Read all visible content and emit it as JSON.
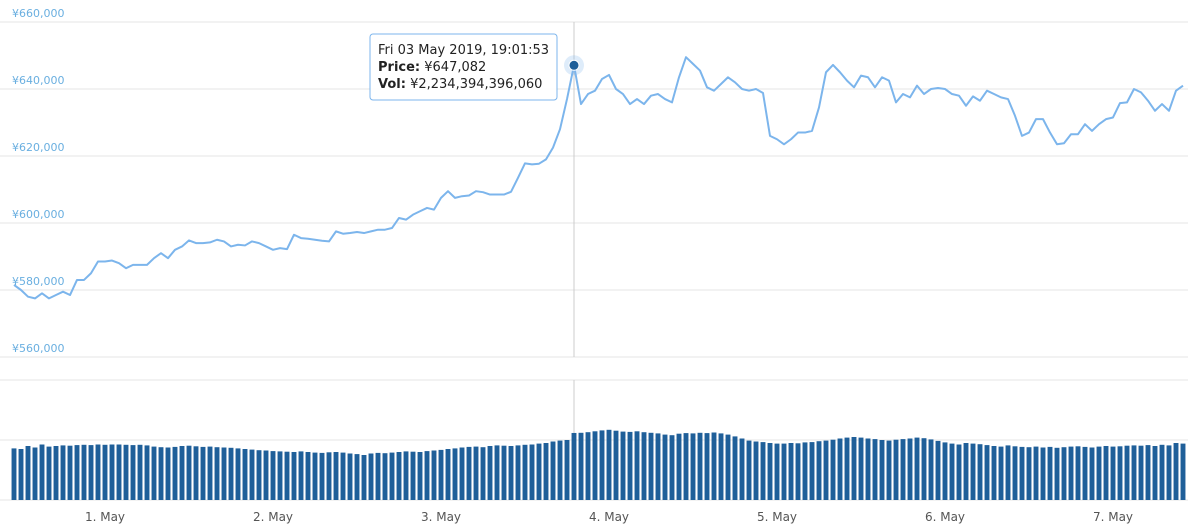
{
  "chart_data": {
    "type": "line",
    "categories": [
      null,
      null,
      null,
      null,
      null,
      null,
      null,
      null,
      null,
      null,
      null,
      null,
      null,
      "1. May",
      null,
      null,
      null,
      null,
      null,
      null,
      null,
      null,
      null,
      null,
      null,
      null,
      null,
      null,
      null,
      null,
      null,
      null,
      null,
      null,
      null,
      null,
      null,
      "2. May",
      null,
      null,
      null,
      null,
      null,
      null,
      null,
      null,
      null,
      null,
      null,
      null,
      null,
      null,
      null,
      null,
      null,
      null,
      null,
      null,
      null,
      null,
      null,
      "3. May",
      null,
      null,
      null,
      null,
      null,
      null,
      null,
      null,
      null,
      null,
      null,
      null,
      null,
      null,
      null,
      null,
      null,
      null,
      null,
      null,
      null,
      null,
      null,
      "4. May",
      null,
      null,
      null,
      null,
      null,
      null,
      null,
      null,
      null,
      null,
      null,
      null,
      null,
      null,
      null,
      null,
      null,
      null,
      null,
      null,
      null,
      null,
      null,
      "5. May",
      null,
      null,
      null,
      null,
      null,
      null,
      null,
      null,
      null,
      null,
      null,
      null,
      null,
      null,
      null,
      null,
      null,
      null,
      null,
      null,
      null,
      null,
      null,
      "6. May",
      null,
      null,
      null,
      null,
      null,
      null,
      null,
      null,
      null,
      null,
      null,
      null,
      null,
      null,
      null,
      null,
      null,
      null,
      null,
      null,
      null,
      null,
      null,
      "7. May",
      null,
      null,
      null,
      null,
      null,
      null,
      null,
      null,
      null,
      null
    ],
    "series": [
      {
        "type": "line",
        "color": "#7cb5ec",
        "values": [
          581500,
          580000,
          578000,
          577500,
          579000,
          577500,
          578500,
          579500,
          578500,
          583000,
          583000,
          585000,
          588500,
          588500,
          588800,
          588000,
          586500,
          587500,
          587500,
          587500,
          589500,
          591000,
          589500,
          592000,
          593000,
          594800,
          594000,
          594000,
          594200,
          595000,
          594500,
          593000,
          593500,
          593300,
          594500,
          594000,
          593000,
          592000,
          592500,
          592200,
          596500,
          595500,
          595300,
          595000,
          594700,
          594500,
          597500,
          596800,
          597000,
          597300,
          597000,
          597500,
          598000,
          598000,
          598500,
          601500,
          601000,
          602500,
          603500,
          604500,
          604000,
          607500,
          609500,
          607500,
          608000,
          608200,
          609500,
          609200,
          608500,
          608500,
          608500,
          609300,
          613500,
          617800,
          617500,
          617700,
          619000,
          622500,
          628000,
          637000,
          647082,
          635500,
          638500,
          639500,
          643000,
          644200,
          640000,
          638500,
          635500,
          637000,
          635500,
          638000,
          638500,
          637000,
          636000,
          643500,
          649500,
          647500,
          645500,
          640500,
          639500,
          641500,
          643500,
          642000,
          640000,
          639500,
          640000,
          638800,
          626000,
          625000,
          623500,
          625000,
          627000,
          627000,
          627500,
          634500,
          645000,
          647200,
          645000,
          642500,
          640500,
          644000,
          643500,
          640500,
          643500,
          642500,
          636000,
          638500,
          637500,
          641000,
          638500,
          640000,
          640300,
          640000,
          638500,
          638000,
          635000,
          637800,
          636500,
          639500,
          638500,
          637500,
          637000,
          632000,
          626000,
          627000,
          631000,
          631000,
          627000,
          623500,
          623800,
          626500,
          626500,
          629500,
          627500,
          629500,
          631000,
          631500,
          635800,
          636000,
          640000,
          639000,
          636500,
          633500,
          635500,
          633500,
          639500,
          641000
        ]
      },
      {
        "type": "column",
        "axis": "y2",
        "color": "#1f5f99",
        "values": [
          1720000000000,
          1700000000000,
          1800000000000,
          1750000000000,
          1850000000000,
          1780000000000,
          1800000000000,
          1820000000000,
          1810000000000,
          1830000000000,
          1840000000000,
          1830000000000,
          1850000000000,
          1840000000000,
          1850000000000,
          1850000000000,
          1840000000000,
          1830000000000,
          1840000000000,
          1820000000000,
          1780000000000,
          1760000000000,
          1750000000000,
          1770000000000,
          1800000000000,
          1810000000000,
          1790000000000,
          1770000000000,
          1780000000000,
          1760000000000,
          1750000000000,
          1740000000000,
          1720000000000,
          1700000000000,
          1680000000000,
          1660000000000,
          1650000000000,
          1630000000000,
          1620000000000,
          1610000000000,
          1600000000000,
          1620000000000,
          1600000000000,
          1580000000000,
          1570000000000,
          1590000000000,
          1600000000000,
          1580000000000,
          1550000000000,
          1530000000000,
          1500000000000,
          1550000000000,
          1570000000000,
          1560000000000,
          1580000000000,
          1600000000000,
          1620000000000,
          1610000000000,
          1600000000000,
          1630000000000,
          1650000000000,
          1670000000000,
          1700000000000,
          1720000000000,
          1750000000000,
          1770000000000,
          1780000000000,
          1760000000000,
          1800000000000,
          1820000000000,
          1810000000000,
          1800000000000,
          1820000000000,
          1840000000000,
          1850000000000,
          1880000000000,
          1900000000000,
          1950000000000,
          1980000000000,
          2000000000000,
          2234394396060,
          2240000000000,
          2260000000000,
          2290000000000,
          2320000000000,
          2340000000000,
          2310000000000,
          2280000000000,
          2270000000000,
          2290000000000,
          2260000000000,
          2240000000000,
          2220000000000,
          2180000000000,
          2160000000000,
          2210000000000,
          2230000000000,
          2220000000000,
          2240000000000,
          2230000000000,
          2250000000000,
          2220000000000,
          2180000000000,
          2120000000000,
          2050000000000,
          1980000000000,
          1950000000000,
          1930000000000,
          1900000000000,
          1880000000000,
          1880000000000,
          1900000000000,
          1890000000000,
          1920000000000,
          1930000000000,
          1960000000000,
          1980000000000,
          2010000000000,
          2050000000000,
          2080000000000,
          2100000000000,
          2080000000000,
          2050000000000,
          2030000000000,
          2000000000000,
          1980000000000,
          2010000000000,
          2030000000000,
          2050000000000,
          2080000000000,
          2060000000000,
          2020000000000,
          1970000000000,
          1920000000000,
          1880000000000,
          1850000000000,
          1900000000000,
          1880000000000,
          1860000000000,
          1830000000000,
          1800000000000,
          1780000000000,
          1820000000000,
          1790000000000,
          1770000000000,
          1760000000000,
          1780000000000,
          1750000000000,
          1770000000000,
          1740000000000,
          1760000000000,
          1780000000000,
          1790000000000,
          1770000000000,
          1750000000000,
          1780000000000,
          1800000000000,
          1780000000000,
          1790000000000,
          1810000000000,
          1820000000000,
          1810000000000,
          1830000000000,
          1800000000000,
          1840000000000,
          1820000000000,
          1900000000000,
          1880000000000
        ]
      }
    ],
    "ylim": [
      560000,
      660000
    ],
    "yticks": [
      {
        "value": 560000,
        "label": "¥560,000"
      },
      {
        "value": 580000,
        "label": "¥580,000"
      },
      {
        "value": 600000,
        "label": "¥600,000"
      },
      {
        "value": 620000,
        "label": "¥620,000"
      },
      {
        "value": 640000,
        "label": "¥640,000"
      },
      {
        "value": 660000,
        "label": "¥660,000"
      }
    ],
    "y2lim": [
      0,
      4000000000000
    ],
    "y2ticks": [
      0,
      2000000000000,
      4000000000000
    ],
    "grid": true,
    "tooltip": {
      "title": "Fri 03 May 2019, 19:01:53",
      "rows": [
        {
          "label": "Price:",
          "value": "¥647,082"
        },
        {
          "label": "Vol:",
          "value": "¥2,234,394,396,060"
        }
      ]
    }
  }
}
